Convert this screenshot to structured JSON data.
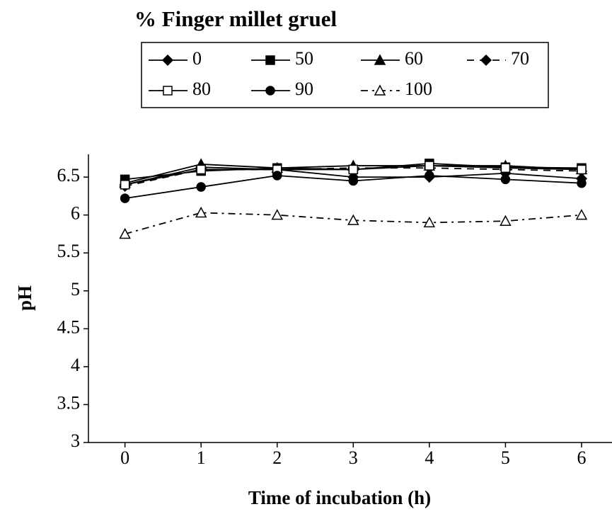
{
  "chart_data": {
    "type": "line",
    "title": "% Finger millet gruel",
    "xlabel": "Time of incubation (h)",
    "ylabel": "pH",
    "x": [
      0,
      1,
      2,
      3,
      4,
      5,
      6
    ],
    "xlim": [
      -0.48,
      6.4
    ],
    "xticks": [
      0,
      1,
      2,
      3,
      4,
      5,
      6
    ],
    "ylim": [
      3,
      6.8
    ],
    "yticks": [
      3,
      3.5,
      4,
      4.5,
      5,
      5.5,
      6,
      6.5
    ],
    "grid": false,
    "series": [
      {
        "name": "0",
        "color": "#000000",
        "marker": "diamond",
        "filled": true,
        "dash": "solid",
        "values": [
          6.4,
          6.63,
          6.6,
          6.5,
          6.5,
          6.55,
          6.48
        ]
      },
      {
        "name": "50",
        "color": "#000000",
        "marker": "square",
        "filled": true,
        "dash": "solid",
        "values": [
          6.47,
          6.58,
          6.62,
          6.6,
          6.68,
          6.63,
          6.62
        ]
      },
      {
        "name": "60",
        "color": "#000000",
        "marker": "triangle",
        "filled": true,
        "dash": "solid",
        "values": [
          6.42,
          6.67,
          6.62,
          6.65,
          6.65,
          6.65,
          6.6
        ]
      },
      {
        "name": "70",
        "color": "#000000",
        "marker": "diamond",
        "filled": true,
        "dash": "dashed",
        "values": [
          6.38,
          6.6,
          6.6,
          6.62,
          6.62,
          6.6,
          6.58
        ]
      },
      {
        "name": "80",
        "color": "#000000",
        "marker": "square",
        "filled": false,
        "dash": "solid",
        "values": [
          6.4,
          6.6,
          6.6,
          6.6,
          6.65,
          6.62,
          6.6
        ]
      },
      {
        "name": "90",
        "color": "#000000",
        "marker": "circle",
        "filled": true,
        "dash": "solid",
        "values": [
          6.22,
          6.37,
          6.52,
          6.45,
          6.52,
          6.47,
          6.42
        ]
      },
      {
        "name": "100",
        "color": "#000000",
        "marker": "triangle",
        "filled": false,
        "dash": "dashdot",
        "values": [
          5.75,
          6.03,
          6.0,
          5.93,
          5.9,
          5.92,
          6.0
        ]
      }
    ]
  }
}
